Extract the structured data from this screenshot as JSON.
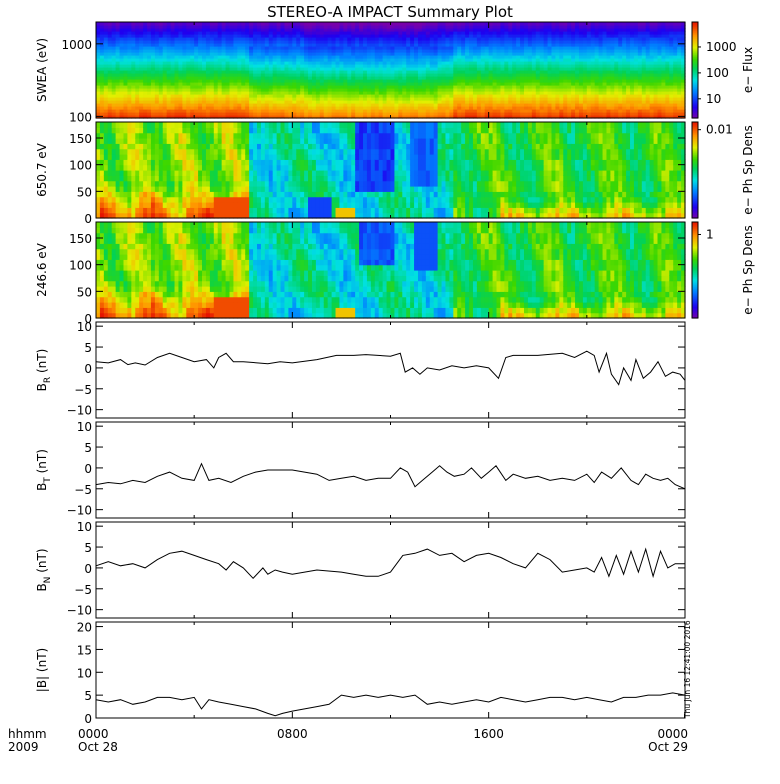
{
  "title": "STEREO-A IMPACT Summary Plot",
  "timestamp": "Thu Jun 16 12:41:00 2016",
  "time_axis": {
    "row1_label": "hhmm",
    "row2_label": "2009",
    "ticks": [
      {
        "t": 0,
        "time": "0000",
        "date": "Oct 28"
      },
      {
        "t": 8,
        "time": "0800",
        "date": ""
      },
      {
        "t": 16,
        "time": "1600",
        "date": ""
      },
      {
        "t": 24,
        "time": "0000",
        "date": "Oct 29"
      }
    ]
  },
  "colors": {
    "trace": "#000000",
    "frame": "#000000"
  },
  "chart_data": [
    {
      "type": "heatmap",
      "name": "swea",
      "ylabel": "SWEA (eV)",
      "yscale": "log",
      "ylim": [
        95,
        2000
      ],
      "yticks": [
        {
          "v": 100,
          "label": "100"
        },
        {
          "v": 1000,
          "label": "1000"
        }
      ],
      "colorbar_label": "e− Flux",
      "colorbar_ticks": [
        {
          "f": 0.2,
          "label": "10"
        },
        {
          "f": 0.47,
          "label": "100"
        },
        {
          "f": 0.74,
          "label": "1000"
        }
      ],
      "colormap": "rainbow"
    },
    {
      "type": "heatmap",
      "name": "pad650",
      "ylabel": "650.7 eV",
      "ylim": [
        0,
        180
      ],
      "yticks": [
        {
          "v": 0,
          "label": "0"
        },
        {
          "v": 50,
          "label": "50"
        },
        {
          "v": 100,
          "label": "100"
        },
        {
          "v": 150,
          "label": "150"
        }
      ],
      "colorbar_label": "e− Ph Sp Dens",
      "colorbar_ticks": [
        {
          "f": 0.92,
          "label": "0.01"
        }
      ],
      "colormap": "rainbow"
    },
    {
      "type": "heatmap",
      "name": "pad246",
      "ylabel": "246.6 eV",
      "ylim": [
        0,
        180
      ],
      "yticks": [
        {
          "v": 0,
          "label": "0"
        },
        {
          "v": 50,
          "label": "50"
        },
        {
          "v": 100,
          "label": "100"
        },
        {
          "v": 150,
          "label": "150"
        }
      ],
      "colorbar_label": "e− Ph Sp Dens",
      "colorbar_ticks": [
        {
          "f": 0.87,
          "label": "1"
        }
      ],
      "colormap": "rainbow"
    },
    {
      "type": "line",
      "name": "br",
      "ylabel": "B",
      "ylabel_sub": "R",
      "ylabel_unit": " (nT)",
      "ylim": [
        -12,
        11
      ],
      "yticks": [
        {
          "v": -10,
          "label": "−10"
        },
        {
          "v": -5,
          "label": "−5"
        },
        {
          "v": 0,
          "label": "0"
        },
        {
          "v": 5,
          "label": "5"
        },
        {
          "v": 10,
          "label": "10"
        }
      ],
      "x": [
        0,
        0.5,
        1,
        1.3,
        1.6,
        2,
        2.5,
        3,
        3.5,
        4,
        4.5,
        4.8,
        5,
        5.3,
        5.6,
        6,
        7,
        7.5,
        8,
        9,
        9.4,
        9.8,
        10.5,
        11,
        12,
        12.4,
        12.6,
        12.9,
        13.2,
        13.5,
        14,
        14.5,
        15,
        15.5,
        16,
        16.4,
        16.7,
        17,
        18,
        19,
        19.5,
        20,
        20.3,
        20.5,
        20.8,
        21,
        21.3,
        21.5,
        21.8,
        22,
        22.3,
        22.6,
        22.9,
        23.2,
        23.5,
        23.8,
        24
      ],
      "y": [
        1.5,
        1.2,
        2,
        0.8,
        1.2,
        0.7,
        2.5,
        3.5,
        2.5,
        1.5,
        2,
        0,
        2.5,
        3.5,
        1.5,
        1.5,
        1,
        1.5,
        1.2,
        2,
        2.5,
        3,
        3,
        3.2,
        2.8,
        3.5,
        -1,
        0,
        -1.5,
        0,
        -0.5,
        0.5,
        0,
        0.5,
        0,
        -2.5,
        2.5,
        3,
        3,
        3.5,
        2.5,
        4,
        3,
        -1,
        3.5,
        -1.5,
        -4,
        0,
        -3,
        2,
        -2.5,
        -1,
        1.5,
        -2,
        -1,
        -1.5,
        -3
      ]
    },
    {
      "type": "line",
      "name": "bt",
      "ylabel": "B",
      "ylabel_sub": "T",
      "ylabel_unit": " (nT)",
      "ylim": [
        -12,
        11
      ],
      "yticks": [
        {
          "v": -10,
          "label": "−10"
        },
        {
          "v": -5,
          "label": "−5"
        },
        {
          "v": 0,
          "label": "0"
        },
        {
          "v": 5,
          "label": "5"
        },
        {
          "v": 10,
          "label": "10"
        }
      ],
      "x": [
        0,
        0.5,
        1,
        1.5,
        2,
        2.5,
        3,
        3.5,
        4,
        4.3,
        4.6,
        5,
        5.5,
        6,
        6.5,
        7,
        7.5,
        8,
        8.5,
        9,
        9.5,
        10,
        10.5,
        11,
        11.5,
        12,
        12.4,
        12.7,
        13,
        13.3,
        13.7,
        14,
        14.3,
        14.6,
        15,
        15.3,
        15.7,
        16,
        16.3,
        16.7,
        17,
        17.5,
        18,
        18.5,
        19,
        19.5,
        20,
        20.3,
        20.6,
        21,
        21.4,
        21.8,
        22.1,
        22.4,
        22.7,
        23,
        23.3,
        23.6,
        24
      ],
      "y": [
        -4,
        -3.5,
        -3.8,
        -3,
        -3.5,
        -2,
        -1,
        -2.5,
        -3,
        1,
        -3,
        -2.5,
        -3.5,
        -2,
        -1,
        -0.5,
        -0.5,
        -0.5,
        -1,
        -1.5,
        -3,
        -2.5,
        -2,
        -3,
        -2.5,
        -2.5,
        0,
        -1,
        -4.5,
        -3,
        -1,
        0.5,
        -1,
        -2,
        -1.5,
        0,
        -2.5,
        -1,
        0.5,
        -3,
        -1.5,
        -2.5,
        -2,
        -3,
        -2.5,
        -3,
        -1.5,
        -3.5,
        -1,
        -2.5,
        0,
        -3,
        -4,
        -1.5,
        -2.5,
        -3,
        -2.5,
        -4,
        -5
      ]
    },
    {
      "type": "line",
      "name": "bn",
      "ylabel": "B",
      "ylabel_sub": "N",
      "ylabel_unit": " (nT)",
      "ylim": [
        -12,
        11
      ],
      "yticks": [
        {
          "v": -10,
          "label": "−10"
        },
        {
          "v": -5,
          "label": "−5"
        },
        {
          "v": 0,
          "label": "0"
        },
        {
          "v": 5,
          "label": "5"
        },
        {
          "v": 10,
          "label": "10"
        }
      ],
      "x": [
        0,
        0.5,
        1,
        1.5,
        2,
        2.5,
        3,
        3.5,
        4,
        4.5,
        5,
        5.3,
        5.6,
        6,
        6.4,
        6.8,
        7,
        7.3,
        7.6,
        8,
        8.5,
        9,
        10,
        10.5,
        11,
        11.5,
        12,
        12.5,
        13,
        13.5,
        14,
        14.5,
        15,
        15.5,
        16,
        16.5,
        17,
        17.5,
        18,
        18.5,
        19,
        19.5,
        20,
        20.3,
        20.6,
        20.9,
        21.2,
        21.5,
        21.8,
        22.1,
        22.4,
        22.7,
        23,
        23.3,
        23.6,
        24
      ],
      "y": [
        0.5,
        1.5,
        0.5,
        1,
        0,
        2,
        3.5,
        4,
        3,
        2,
        1,
        -0.5,
        1.5,
        0,
        -2.5,
        0,
        -1.5,
        -0.5,
        -1,
        -1.5,
        -1,
        -0.5,
        -1,
        -1.5,
        -2,
        -2,
        -1,
        3,
        3.5,
        4.5,
        3,
        3.5,
        1.5,
        3,
        3.5,
        2.5,
        1,
        0,
        3.5,
        2,
        -1,
        -0.5,
        0,
        -1,
        2.5,
        -2,
        3,
        -1.5,
        4,
        -1,
        4.5,
        -2,
        4,
        0,
        1,
        1
      ]
    },
    {
      "type": "line",
      "name": "bmag",
      "ylabel": "|B| (nT)",
      "ylim": [
        0,
        21
      ],
      "yticks": [
        {
          "v": 0,
          "label": "0"
        },
        {
          "v": 5,
          "label": "5"
        },
        {
          "v": 10,
          "label": "10"
        },
        {
          "v": 15,
          "label": "15"
        },
        {
          "v": 20,
          "label": "20"
        }
      ],
      "x": [
        0,
        0.5,
        1,
        1.5,
        2,
        2.5,
        3,
        3.5,
        4,
        4.3,
        4.6,
        5,
        5.5,
        6,
        6.5,
        7,
        7.3,
        7.6,
        8,
        8.5,
        9,
        9.5,
        10,
        10.5,
        11,
        11.5,
        12,
        12.5,
        13,
        13.5,
        14,
        14.5,
        15,
        15.5,
        16,
        16.5,
        17,
        17.5,
        18,
        18.5,
        19,
        19.5,
        20,
        20.5,
        21,
        21.5,
        22,
        22.5,
        23,
        23.5,
        24
      ],
      "y": [
        4,
        3.5,
        4,
        3,
        3.5,
        4.5,
        4.5,
        4,
        4.5,
        2,
        4,
        3.5,
        3,
        2.5,
        2,
        1,
        0.5,
        1,
        1.5,
        2,
        2.5,
        3,
        5,
        4.5,
        5,
        4.5,
        5,
        4.5,
        5,
        3,
        3.5,
        3,
        3.5,
        4,
        3.5,
        4.5,
        4,
        3.5,
        4,
        4.5,
        4.5,
        4,
        4.5,
        4,
        3.5,
        4.5,
        4.5,
        5,
        5,
        5.5,
        5
      ]
    }
  ]
}
